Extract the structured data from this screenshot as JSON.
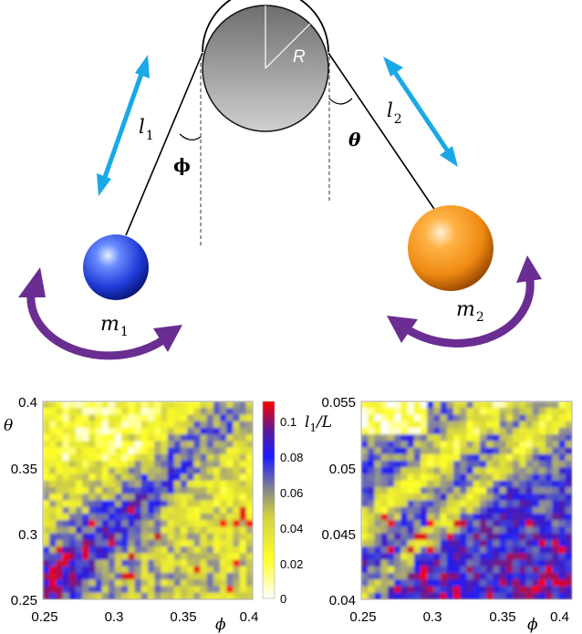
{
  "diagram": {
    "pulley_radius_label": "R",
    "left_mass": {
      "label": "m",
      "subscript": "1"
    },
    "right_mass": {
      "label": "m",
      "subscript": "2"
    },
    "left_length": {
      "label": "l",
      "subscript": "1"
    },
    "right_length": {
      "label": "l",
      "subscript": "2"
    },
    "left_angle_label": "ϕ",
    "right_angle_label": "θ",
    "colors": {
      "double_arrow": "#1aa8e6",
      "swing_arrow": "#6a2d91",
      "left_mass": "#2244dd",
      "right_mass": "#f08a10",
      "pulley": "#a8a8a8"
    }
  },
  "chart_data": [
    {
      "type": "heatmap",
      "xlabel": "ϕ",
      "ylabel": "θ",
      "xlim": [
        0.25,
        0.4
      ],
      "ylim": [
        0.25,
        0.4
      ],
      "xticks": [
        "0.25",
        "0.3",
        "0.35",
        "0.4"
      ],
      "yticks": [
        "0.25",
        "0.3",
        "0.35",
        "0.4"
      ]
    },
    {
      "type": "heatmap",
      "xlabel": "ϕ",
      "ylabel": "",
      "xlim": [
        0.25,
        0.4
      ],
      "ylim": [
        0.04,
        0.055
      ],
      "xticks": [
        "0.25",
        "0.3",
        "0.35",
        "0.4"
      ],
      "yticks": [
        "0.04",
        "0.045",
        "0.05",
        "0.055"
      ]
    }
  ],
  "colorbar": {
    "label": "l",
    "label_subscript": "1",
    "label_suffix": "/L",
    "range": [
      0,
      0.11
    ],
    "ticks": [
      "0",
      "0.02",
      "0.04",
      "0.06",
      "0.08",
      "0.1"
    ],
    "colors": [
      "#ffffff",
      "#ffff1a",
      "#888888",
      "#1a1aff",
      "#ff0000"
    ]
  }
}
